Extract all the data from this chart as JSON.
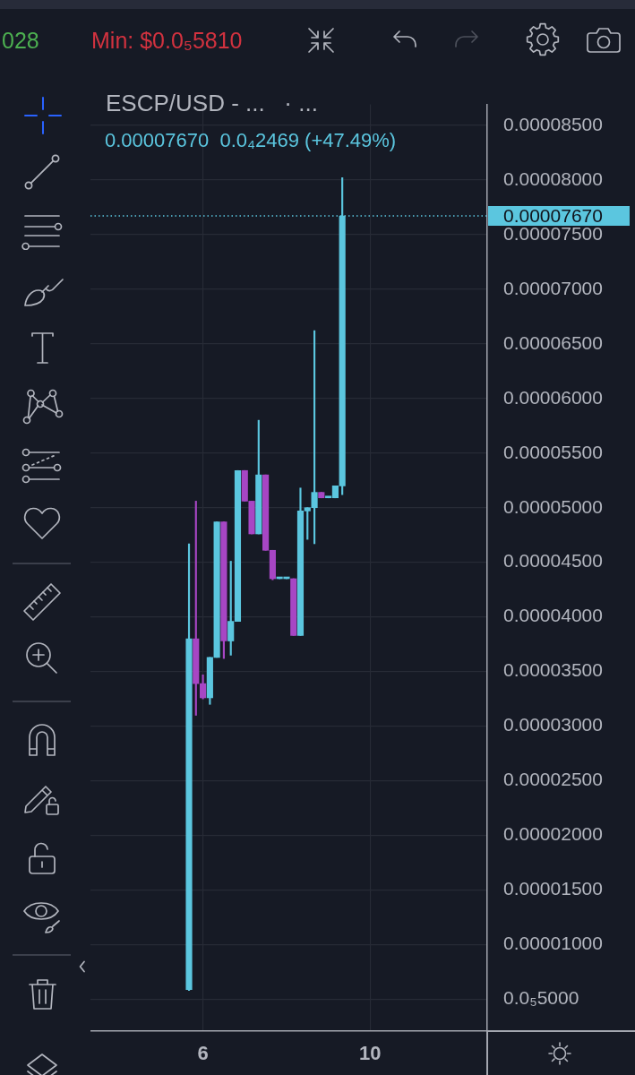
{
  "chart_data": {
    "type": "candlestick",
    "title": "ESCP/USD - ...   · ...",
    "subtitle": "0.00007670  0.0₄2469 (+47.49%)",
    "annotations": [
      "028",
      "Min: $0.0₅5810"
    ],
    "x": [
      5.667,
      5.833,
      6,
      6.167,
      6.333,
      6.5,
      6.667,
      6.833,
      7,
      7.167,
      7.333,
      7.5,
      7.667,
      7.833,
      8,
      8.167,
      8.333,
      8.5,
      8.667,
      8.833,
      9,
      9.167,
      9.333
    ],
    "ohlc": [
      [
        5.9e-06,
        4.67e-05,
        5.81e-06,
        3.8e-05
      ],
      [
        3.8e-05,
        5.06e-05,
        3.1e-05,
        3.39e-05
      ],
      [
        3.39e-05,
        3.47e-05,
        3.25e-05,
        3.26e-05
      ],
      [
        3.26e-05,
        3.63e-05,
        3.2e-05,
        3.63e-05
      ],
      [
        3.63e-05,
        4.87e-05,
        3.63e-05,
        4.87e-05
      ],
      [
        4.87e-05,
        4.87e-05,
        3.62e-05,
        3.78e-05
      ],
      [
        3.78e-05,
        4.51e-05,
        3.65e-05,
        3.96e-05
      ],
      [
        3.96e-05,
        5.34e-05,
        3.96e-05,
        5.34e-05
      ],
      [
        5.34e-05,
        5.34e-05,
        5.06e-05,
        5.06e-05
      ],
      [
        5.06e-05,
        5.06e-05,
        4.76e-05,
        4.76e-05
      ],
      [
        4.76e-05,
        5.8e-05,
        4.76e-05,
        5.3e-05
      ],
      [
        5.3e-05,
        5.3e-05,
        4.61e-05,
        4.61e-05
      ],
      [
        4.61e-05,
        4.61e-05,
        4.34e-05,
        4.35e-05
      ],
      [
        4.35e-05,
        4.35e-05,
        4.35e-05,
        4.35e-05
      ],
      [
        4.35e-05,
        4.35e-05,
        4.35e-05,
        4.35e-05
      ],
      [
        4.35e-05,
        4.35e-05,
        3.83e-05,
        3.83e-05
      ],
      [
        3.83e-05,
        5.18e-05,
        3.83e-05,
        4.97e-05
      ],
      [
        4.97e-05,
        5e-05,
        4.71e-05,
        5e-05
      ],
      [
        5e-05,
        6.62e-05,
        4.67e-05,
        5.14e-05
      ],
      [
        5.14e-05,
        5.14e-05,
        5.09e-05,
        5.09e-05
      ],
      [
        5.09e-05,
        5.09e-05,
        5.09e-05,
        5.09e-05
      ],
      [
        5.09e-05,
        5.2e-05,
        5.09e-05,
        5.2e-05
      ],
      [
        5.2e-05,
        8.02e-05,
        5.12e-05,
        7.67e-05
      ]
    ],
    "colors": [
      "#5bc6df",
      "#a746c4",
      "#a746c4",
      "#5bc6df",
      "#5bc6df",
      "#a746c4",
      "#5bc6df",
      "#5bc6df",
      "#a746c4",
      "#a746c4",
      "#5bc6df",
      "#a746c4",
      "#a746c4",
      "#5bc6df",
      "#5bc6df",
      "#a746c4",
      "#5bc6df",
      "#5bc6df",
      "#5bc6df",
      "#a746c4",
      "#5bc6df",
      "#5bc6df",
      "#5bc6df"
    ],
    "xlim": [
      3.31,
      12.8
    ],
    "xticks": [
      6,
      10
    ],
    "ylim": [
      2.1e-06,
      8.69e-05
    ],
    "yticks": [
      {
        "value": 5e-06,
        "label": "0.0₅5000"
      },
      {
        "value": 1e-05,
        "label": "0.00001000"
      },
      {
        "value": 1.5e-05,
        "label": "0.00001500"
      },
      {
        "value": 2e-05,
        "label": "0.00002000"
      },
      {
        "value": 2.5e-05,
        "label": "0.00002500"
      },
      {
        "value": 3e-05,
        "label": "0.00003000"
      },
      {
        "value": 3.5e-05,
        "label": "0.00003500"
      },
      {
        "value": 4e-05,
        "label": "0.00004000"
      },
      {
        "value": 4.5e-05,
        "label": "0.00004500"
      },
      {
        "value": 5e-05,
        "label": "0.00005000"
      },
      {
        "value": 5.5e-05,
        "label": "0.00005500"
      },
      {
        "value": 6e-05,
        "label": "0.00006000"
      },
      {
        "value": 6.5e-05,
        "label": "0.00006500"
      },
      {
        "value": 7e-05,
        "label": "0.00007000"
      },
      {
        "value": 7.5e-05,
        "label": "0.00007500"
      },
      {
        "value": 8e-05,
        "label": "0.00008000"
      },
      {
        "value": 8.5e-05,
        "label": "0.00008500"
      }
    ],
    "grid": true,
    "ref_lines": [
      {
        "axis": "y",
        "value": 7.67e-05,
        "label": "0.00007670",
        "color": "#5bc6df",
        "line_style": "dotted"
      }
    ]
  }
}
